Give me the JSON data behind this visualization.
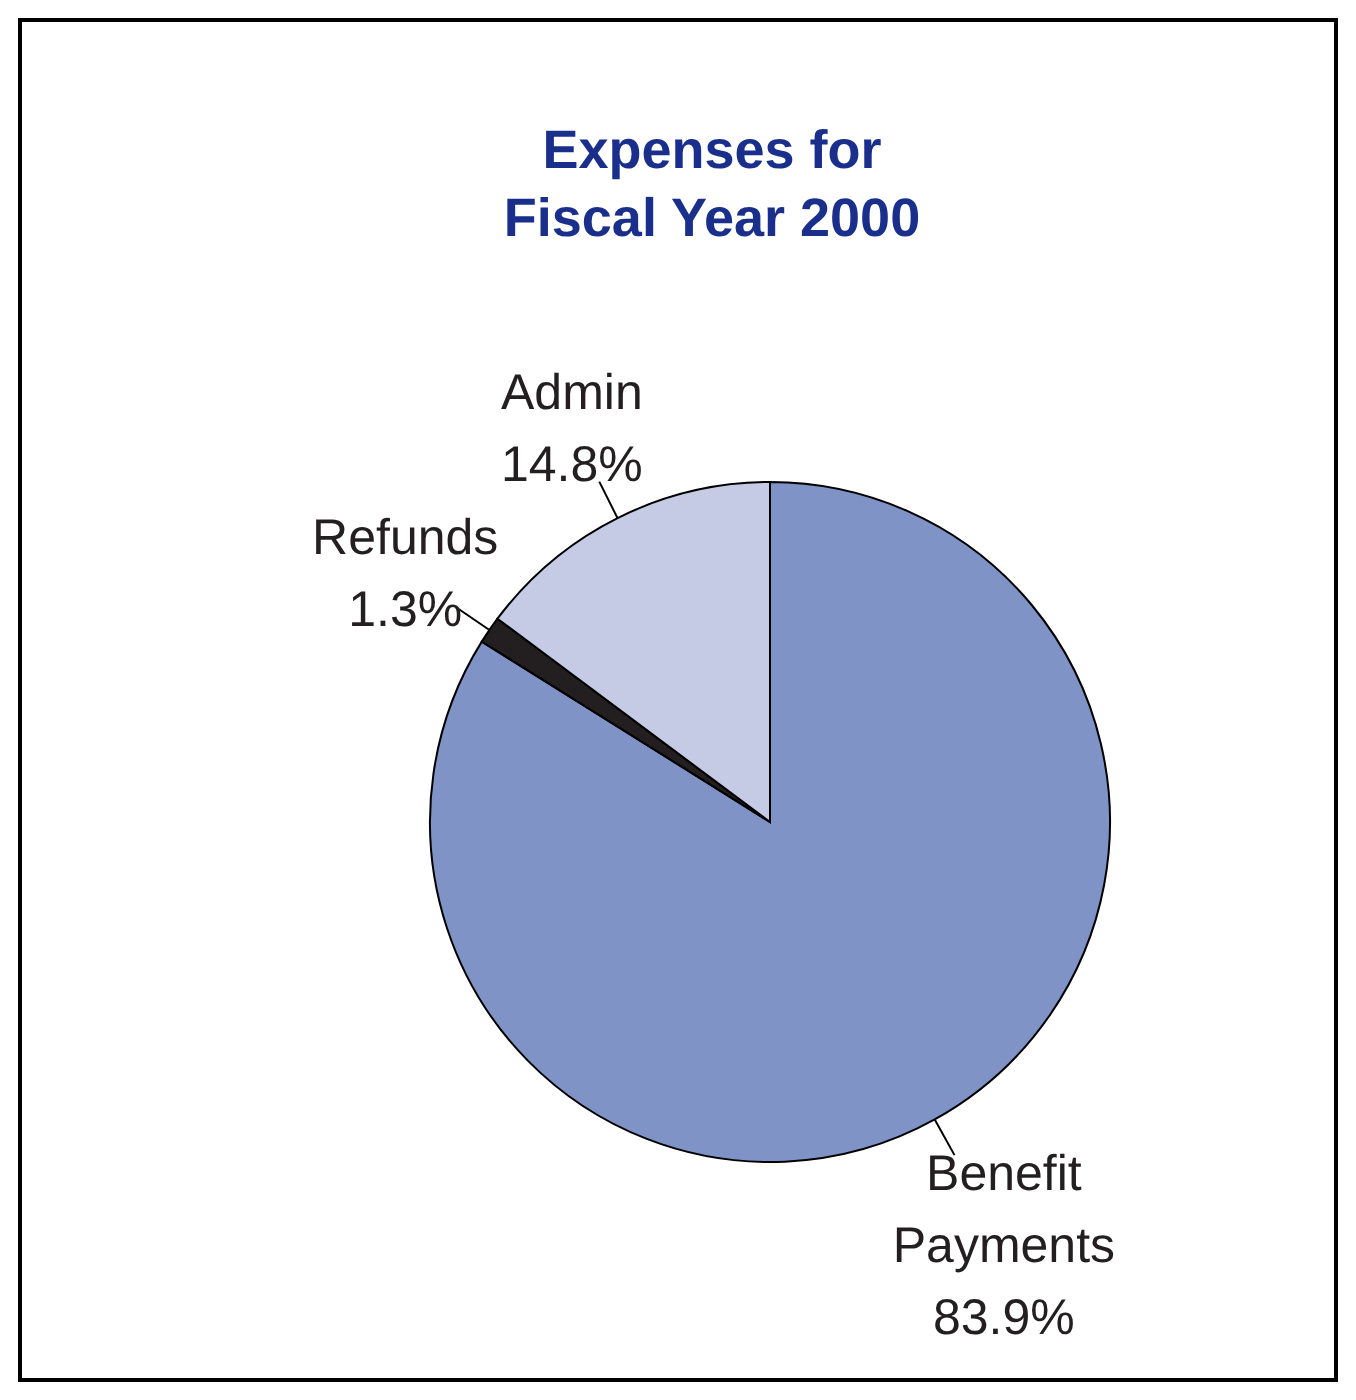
{
  "chart_data": {
    "type": "pie",
    "title": "Expenses for\nFiscal Year 2000",
    "categories": [
      "Benefit Payments",
      "Refunds",
      "Admin"
    ],
    "values": [
      83.9,
      1.3,
      14.8
    ],
    "value_labels": [
      "83.9%",
      "1.3%",
      "14.8%"
    ],
    "colors": [
      "#7f93c7",
      "#231f20",
      "#c5cbe4"
    ]
  }
}
